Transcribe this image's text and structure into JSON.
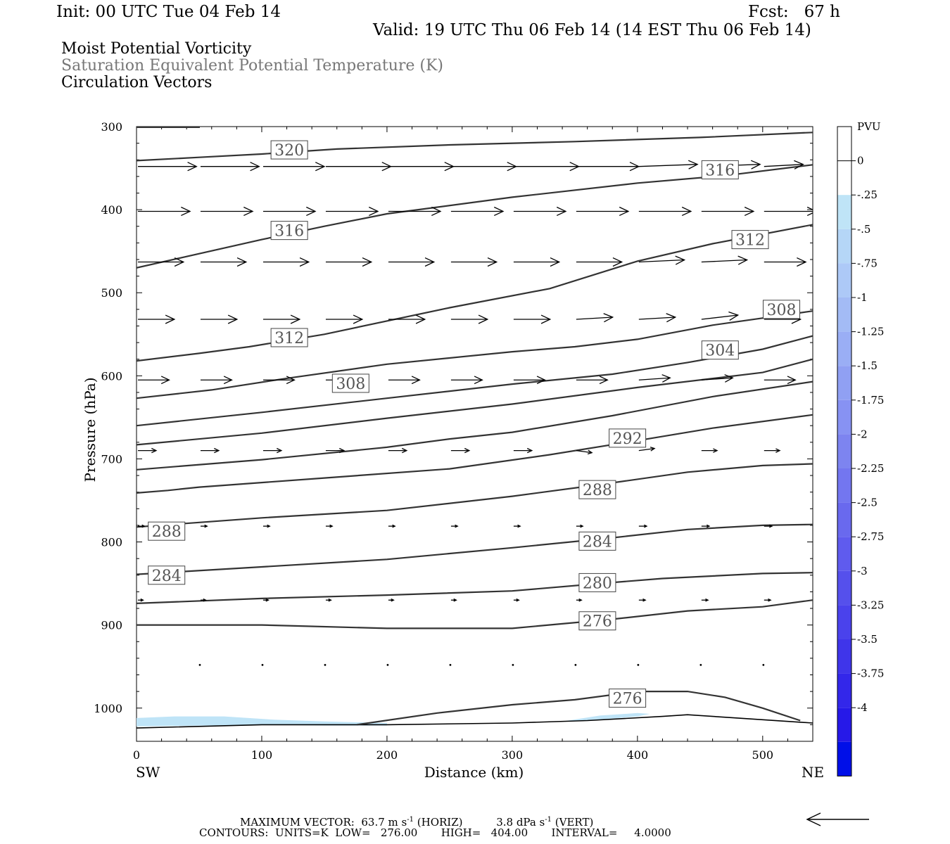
{
  "header": {
    "init": "Init: 00 UTC Tue 04 Feb 14",
    "fcst": "Fcst:   67 h",
    "valid": "Valid: 19 UTC Thu 06 Feb 14 (14 EST Thu 06 Feb 14)",
    "fields": [
      "Moist Potential Vorticity",
      "Saturation Equivalent Potential Temperature (K)",
      "Circulation Vectors"
    ]
  },
  "colors": {
    "field2": "#777777",
    "contour": "#333333",
    "mpv_fill": "#bfe4f7",
    "colorbar": [
      "#ffffff",
      "#ffffff",
      "#bfe4f7",
      "#b5d6f7",
      "#adc9f7",
      "#a3bbf5",
      "#9aaef5",
      "#90a0f3",
      "#8792f3",
      "#7d84f0",
      "#7376f0",
      "#6969ee",
      "#5f5bee",
      "#5550ec",
      "#4a42ec",
      "#3f35ea",
      "#3327ea",
      "#2619e8",
      "#000fe8"
    ]
  },
  "footer": {
    "maxvec_label": "MAXIMUM VECTOR:",
    "maxvec_horiz": "63.7 m s",
    "maxvec_horiz_unit": "(HORIZ)",
    "maxvec_vert": "3.8 dPa s",
    "maxvec_vert_unit": "(VERT)",
    "exp": "-1",
    "contours": "CONTOURS:  UNITS=K  LOW=   276.00       HIGH=   404.00       INTERVAL=     4.0000"
  },
  "chart_data": {
    "type": "contour-cross-section",
    "xlabel": "Distance (km)",
    "ylabel": "Pressure (hPa)",
    "xlim": [
      0,
      540
    ],
    "ylim": [
      300,
      1040
    ],
    "y_scale": "linear, inverted",
    "x_ticks": [
      0,
      100,
      200,
      300,
      400,
      500
    ],
    "y_ticks": [
      300,
      400,
      500,
      600,
      700,
      800,
      900,
      1000
    ],
    "x_ends": {
      "left": "SW",
      "right": "NE"
    },
    "colorbar": {
      "units": "PVU",
      "labels": [
        "0",
        "-.25",
        "-.5",
        "-.75",
        "-1",
        "-1.25",
        "-1.5",
        "-1.75",
        "-2",
        "-2.25",
        "-2.5",
        "-2.75",
        "-3",
        "-3.25",
        "-3.5",
        "-3.75",
        "-4"
      ]
    },
    "contours": [
      {
        "value": 320,
        "pts": [
          [
            0,
            341
          ],
          [
            50,
            337
          ],
          [
            100,
            333
          ],
          [
            160,
            327
          ],
          [
            250,
            322
          ],
          [
            350,
            318
          ],
          [
            450,
            313
          ],
          [
            540,
            307
          ]
        ],
        "labels": [
          [
            122,
            328
          ]
        ]
      },
      {
        "value": 316,
        "pts": [
          [
            0,
            470
          ],
          [
            50,
            453
          ],
          [
            100,
            436
          ],
          [
            150,
            420
          ],
          [
            200,
            405
          ],
          [
            300,
            385
          ],
          [
            400,
            368
          ],
          [
            470,
            359
          ],
          [
            540,
            346
          ]
        ],
        "labels": [
          [
            122,
            425
          ],
          [
            466,
            352
          ]
        ]
      },
      {
        "value": 312,
        "pts": [
          [
            0,
            582
          ],
          [
            50,
            573
          ],
          [
            90,
            565
          ],
          [
            150,
            550
          ],
          [
            250,
            518
          ],
          [
            330,
            495
          ],
          [
            400,
            462
          ],
          [
            460,
            441
          ],
          [
            540,
            418
          ]
        ],
        "labels": [
          [
            122,
            554
          ],
          [
            490,
            436
          ]
        ]
      },
      {
        "value": 308,
        "pts": [
          [
            0,
            627
          ],
          [
            60,
            617
          ],
          [
            120,
            603
          ],
          [
            200,
            586
          ],
          [
            300,
            571
          ],
          [
            350,
            565
          ],
          [
            400,
            556
          ],
          [
            460,
            539
          ],
          [
            540,
            522
          ]
        ],
        "labels": [
          [
            171,
            609
          ],
          [
            515,
            520
          ]
        ]
      },
      {
        "value": 304,
        "pts": [
          [
            0,
            660
          ],
          [
            100,
            644
          ],
          [
            200,
            627
          ],
          [
            300,
            610
          ],
          [
            380,
            598
          ],
          [
            440,
            584
          ],
          [
            500,
            568
          ],
          [
            540,
            552
          ]
        ],
        "labels": [
          [
            466,
            569
          ]
        ]
      },
      {
        "value": 300,
        "pts": [
          [
            0,
            683
          ],
          [
            100,
            669
          ],
          [
            200,
            651
          ],
          [
            300,
            634
          ],
          [
            400,
            614
          ],
          [
            500,
            596
          ],
          [
            540,
            580
          ]
        ]
      },
      {
        "value": 296,
        "pts": [
          [
            0,
            713
          ],
          [
            100,
            701
          ],
          [
            200,
            686
          ],
          [
            250,
            676
          ],
          [
            300,
            668
          ],
          [
            380,
            648
          ],
          [
            460,
            625
          ],
          [
            540,
            607
          ]
        ]
      },
      {
        "value": 292,
        "pts": [
          [
            0,
            741
          ],
          [
            25,
            738
          ],
          [
            50,
            734
          ],
          [
            150,
            723
          ],
          [
            250,
            712
          ],
          [
            330,
            695
          ],
          [
            400,
            678
          ],
          [
            460,
            663
          ],
          [
            540,
            647
          ]
        ],
        "labels": [
          [
            392,
            675
          ]
        ]
      },
      {
        "value": 288,
        "pts": [
          [
            0,
            782
          ],
          [
            100,
            771
          ],
          [
            200,
            762
          ],
          [
            300,
            745
          ],
          [
            370,
            731
          ],
          [
            440,
            716
          ],
          [
            500,
            708
          ],
          [
            540,
            706
          ]
        ],
        "labels": [
          [
            24,
            787
          ],
          [
            368,
            737
          ]
        ]
      },
      {
        "value": 284,
        "pts": [
          [
            0,
            839
          ],
          [
            100,
            830
          ],
          [
            200,
            821
          ],
          [
            300,
            807
          ],
          [
            380,
            795
          ],
          [
            440,
            785
          ],
          [
            500,
            780
          ],
          [
            540,
            779
          ]
        ],
        "labels": [
          [
            24,
            840
          ],
          [
            368,
            799
          ]
        ]
      },
      {
        "value": 280,
        "pts": [
          [
            0,
            874
          ],
          [
            100,
            868
          ],
          [
            200,
            864
          ],
          [
            300,
            859
          ],
          [
            370,
            850
          ],
          [
            420,
            844
          ],
          [
            500,
            838
          ],
          [
            540,
            837
          ]
        ],
        "labels": [
          [
            368,
            849
          ]
        ]
      },
      {
        "value": 276,
        "pts": [
          [
            0,
            900
          ],
          [
            100,
            900
          ],
          [
            200,
            904
          ],
          [
            300,
            904
          ],
          [
            380,
            893
          ],
          [
            440,
            883
          ],
          [
            500,
            878
          ],
          [
            540,
            870
          ]
        ],
        "labels": [
          [
            368,
            895
          ]
        ]
      },
      {
        "value": 276,
        "pts": [
          [
            176,
            1020
          ],
          [
            240,
            1006
          ],
          [
            300,
            996
          ],
          [
            350,
            990
          ],
          [
            400,
            980
          ],
          [
            440,
            980
          ],
          [
            470,
            987
          ],
          [
            500,
            1000
          ],
          [
            530,
            1015
          ]
        ],
        "labels": [
          [
            392,
            988
          ]
        ]
      }
    ],
    "ground": [
      [
        0,
        1024
      ],
      [
        100,
        1020
      ],
      [
        200,
        1020
      ],
      [
        300,
        1018
      ],
      [
        360,
        1015
      ],
      [
        420,
        1010
      ],
      [
        440,
        1008
      ],
      [
        480,
        1012
      ],
      [
        540,
        1018
      ]
    ],
    "mpv_shading": [
      {
        "pts": [
          [
            0,
            1012
          ],
          [
            30,
            1010
          ],
          [
            70,
            1010
          ],
          [
            110,
            1014
          ],
          [
            150,
            1016
          ],
          [
            200,
            1018
          ],
          [
            200,
            1021
          ],
          [
            150,
            1021
          ],
          [
            100,
            1020
          ],
          [
            50,
            1021
          ],
          [
            0,
            1022
          ]
        ]
      },
      {
        "pts": [
          [
            340,
            1016
          ],
          [
            370,
            1009
          ],
          [
            400,
            1006
          ],
          [
            410,
            1007
          ],
          [
            400,
            1010
          ],
          [
            370,
            1014
          ]
        ]
      }
    ],
    "vectors": {
      "x": [
        0,
        50,
        100,
        150,
        200,
        250,
        300,
        350,
        400,
        450,
        500
      ],
      "rows": [
        {
          "p": 348,
          "u": [
            45,
            45,
            47,
            50,
            50,
            50,
            50,
            48,
            45,
            45,
            30
          ],
          "w": [
            0,
            0,
            0,
            0,
            0,
            0,
            0,
            0,
            -1,
            -1,
            -1
          ]
        },
        {
          "p": 402,
          "u": [
            40,
            40,
            40,
            40,
            40,
            40,
            40,
            40,
            40,
            40,
            40
          ],
          "w": [
            0,
            0,
            0,
            0,
            0,
            0,
            0,
            0,
            0,
            0,
            0
          ]
        },
        {
          "p": 463,
          "u": [
            35,
            35,
            35,
            35,
            35,
            35,
            35,
            35,
            35,
            35,
            32
          ],
          "w": [
            0,
            0,
            0,
            0,
            0,
            0,
            0,
            0,
            -1,
            -1,
            0
          ]
        },
        {
          "p": 532,
          "u": [
            28,
            28,
            28,
            28,
            28,
            28,
            28,
            28,
            28,
            28,
            28
          ],
          "w": [
            0,
            0,
            0,
            0,
            0,
            0,
            0,
            -1,
            -1,
            -2,
            0
          ]
        },
        {
          "p": 605,
          "u": [
            24,
            24,
            24,
            24,
            24,
            24,
            24,
            24,
            24,
            24,
            24
          ],
          "w": [
            0,
            0,
            0,
            0,
            0,
            0,
            0,
            0,
            -1,
            -1,
            0
          ]
        },
        {
          "p": 690,
          "u": [
            14,
            14,
            14,
            14,
            14,
            14,
            14,
            12,
            12,
            12,
            12
          ],
          "w": [
            0,
            0,
            0,
            0,
            0,
            0,
            0,
            1,
            -1,
            0,
            0
          ]
        },
        {
          "p": 781,
          "u": [
            5,
            5,
            5,
            5,
            5,
            5,
            5,
            5,
            6,
            6,
            6
          ],
          "w": [
            0,
            0,
            0,
            0,
            0,
            0,
            0,
            0,
            0,
            0,
            0
          ]
        },
        {
          "p": 870,
          "u": [
            4,
            4,
            4,
            4,
            4,
            4,
            4,
            4,
            5,
            5,
            5
          ],
          "w": [
            0,
            0,
            0,
            0,
            0,
            0,
            0,
            0,
            0,
            0,
            0
          ]
        },
        {
          "p": 948,
          "u": [
            1,
            1,
            1,
            1,
            1,
            1,
            1,
            1,
            1,
            1,
            1
          ],
          "w": [
            0,
            0,
            0,
            0,
            0,
            0,
            0,
            0,
            0,
            0,
            0
          ]
        }
      ]
    }
  }
}
